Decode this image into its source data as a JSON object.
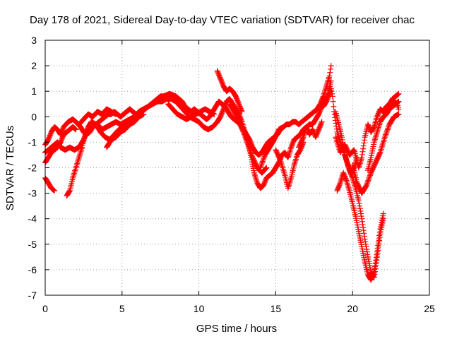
{
  "chart_data": {
    "type": "scatter",
    "title": "Day 178 of 2021, Sidereal Day-to-day VTEC variation (SDTVAR) for receiver chac",
    "xlabel": "GPS time / hours",
    "ylabel": "SDTVAR / TECUs",
    "xlim": [
      0,
      25
    ],
    "ylim": [
      -7,
      3
    ],
    "xticks": [
      0,
      5,
      10,
      15,
      20,
      25
    ],
    "yticks": [
      -7,
      -6,
      -5,
      -4,
      -3,
      -2,
      -1,
      0,
      1,
      2,
      3
    ],
    "grid": true,
    "legend": "none",
    "marker": "plus",
    "series_color": "#ff0000",
    "tracks": [
      [
        [
          0.0,
          -1.1
        ],
        [
          0.2,
          -0.9
        ],
        [
          0.4,
          -0.6
        ],
        [
          0.6,
          -0.4
        ],
        [
          0.8,
          -0.5
        ],
        [
          1.0,
          -0.7
        ],
        [
          1.2,
          -0.4
        ],
        [
          1.5,
          -0.2
        ],
        [
          1.8,
          -0.1
        ],
        [
          2.0,
          -0.2
        ],
        [
          2.3,
          -0.4
        ],
        [
          2.5,
          -0.6
        ],
        [
          2.7,
          -0.7
        ],
        [
          2.9,
          -0.6
        ],
        [
          3.1,
          -0.4
        ],
        [
          3.3,
          -0.3
        ],
        [
          3.5,
          -0.2
        ],
        [
          3.7,
          -0.1
        ],
        [
          3.9,
          0.0
        ],
        [
          4.1,
          0.1
        ],
        [
          4.3,
          0.1
        ],
        [
          4.5,
          0.2
        ],
        [
          4.7,
          0.1
        ],
        [
          4.9,
          0.0
        ],
        [
          5.1,
          0.1
        ],
        [
          5.3,
          0.2
        ],
        [
          5.5,
          0.3
        ],
        [
          5.7,
          0.2
        ],
        [
          5.9,
          0.1
        ],
        [
          6.1,
          0.1
        ],
        [
          6.3,
          0.2
        ],
        [
          6.5,
          0.3
        ],
        [
          6.7,
          0.4
        ],
        [
          6.9,
          0.5
        ],
        [
          7.1,
          0.6
        ],
        [
          7.3,
          0.7
        ],
        [
          7.5,
          0.8
        ],
        [
          7.7,
          0.8
        ],
        [
          7.9,
          0.85
        ],
        [
          8.1,
          0.9
        ],
        [
          8.3,
          0.85
        ],
        [
          8.5,
          0.8
        ],
        [
          8.7,
          0.7
        ],
        [
          8.9,
          0.6
        ],
        [
          9.1,
          0.4
        ],
        [
          9.3,
          0.3
        ],
        [
          9.5,
          0.2
        ],
        [
          9.7,
          0.3
        ],
        [
          9.9,
          0.2
        ],
        [
          10.1,
          0.1
        ],
        [
          10.3,
          0.0
        ],
        [
          10.5,
          -0.1
        ],
        [
          10.7,
          0.0
        ],
        [
          10.9,
          0.2
        ],
        [
          11.1,
          0.4
        ],
        [
          11.3,
          0.6
        ],
        [
          11.5,
          0.5
        ],
        [
          11.7,
          0.4
        ],
        [
          11.9,
          0.2
        ],
        [
          12.1,
          0.0
        ],
        [
          12.3,
          -0.1
        ],
        [
          12.5,
          -0.2
        ],
        [
          12.7,
          -0.3
        ],
        [
          12.9,
          -0.5
        ],
        [
          13.1,
          -0.7
        ],
        [
          13.3,
          -0.9
        ],
        [
          13.5,
          -1.2
        ],
        [
          13.7,
          -1.4
        ],
        [
          13.9,
          -1.5
        ],
        [
          14.1,
          -1.4
        ],
        [
          14.3,
          -1.2
        ],
        [
          14.5,
          -1.0
        ],
        [
          14.7,
          -0.9
        ],
        [
          14.9,
          -0.8
        ],
        [
          15.1,
          -0.7
        ],
        [
          15.3,
          -0.5
        ],
        [
          15.5,
          -0.4
        ],
        [
          15.7,
          -0.3
        ],
        [
          15.9,
          -0.3
        ],
        [
          16.1,
          -0.2
        ],
        [
          16.3,
          -0.2
        ],
        [
          16.5,
          -0.3
        ],
        [
          16.7,
          -0.2
        ],
        [
          16.9,
          -0.1
        ],
        [
          17.1,
          0.0
        ],
        [
          17.3,
          0.1
        ],
        [
          17.5,
          0.2
        ],
        [
          17.7,
          0.3
        ],
        [
          17.9,
          0.5
        ],
        [
          18.1,
          0.8
        ],
        [
          18.3,
          1.2
        ],
        [
          18.5,
          1.6
        ],
        [
          18.6,
          2.0
        ]
      ],
      [
        [
          0.0,
          -1.4
        ],
        [
          0.2,
          -1.3
        ],
        [
          0.4,
          -1.2
        ],
        [
          0.6,
          -1.1
        ],
        [
          0.8,
          -1.0
        ],
        [
          1.0,
          -1.2
        ],
        [
          1.3,
          -1.3
        ],
        [
          1.6,
          -1.2
        ],
        [
          1.9,
          -1.3
        ],
        [
          2.2,
          -1.2
        ],
        [
          2.5,
          -0.9
        ],
        [
          2.8,
          -0.5
        ],
        [
          3.1,
          -0.3
        ],
        [
          3.4,
          -0.3
        ],
        [
          3.7,
          -0.5
        ],
        [
          4.0,
          -0.4
        ],
        [
          4.3,
          -0.3
        ],
        [
          4.6,
          -0.2
        ],
        [
          4.9,
          -0.3
        ],
        [
          5.2,
          -0.2
        ],
        [
          5.5,
          -0.1
        ],
        [
          5.8,
          0.0
        ],
        [
          6.1,
          0.2
        ],
        [
          6.4,
          0.3
        ],
        [
          6.7,
          0.4
        ],
        [
          7.0,
          0.5
        ],
        [
          7.3,
          0.6
        ],
        [
          7.6,
          0.6
        ],
        [
          7.9,
          0.7
        ],
        [
          8.2,
          0.7
        ],
        [
          8.5,
          0.6
        ],
        [
          8.8,
          0.4
        ],
        [
          9.1,
          0.2
        ],
        [
          9.4,
          0.0
        ],
        [
          9.7,
          -0.1
        ],
        [
          10.0,
          -0.2
        ],
        [
          10.3,
          -0.4
        ],
        [
          10.6,
          -0.5
        ],
        [
          10.9,
          -0.4
        ],
        [
          11.2,
          -0.2
        ],
        [
          11.4,
          0.0
        ],
        [
          11.6,
          0.3
        ],
        [
          11.8,
          0.6
        ],
        [
          12.0,
          0.7
        ],
        [
          12.2,
          0.5
        ],
        [
          12.4,
          0.3
        ],
        [
          12.6,
          0.1
        ],
        [
          12.8,
          -0.2
        ],
        [
          13.0,
          -0.6
        ],
        [
          13.2,
          -1.0
        ],
        [
          13.4,
          -1.6
        ],
        [
          13.6,
          -2.2
        ],
        [
          13.8,
          -2.6
        ],
        [
          14.0,
          -2.8
        ],
        [
          14.2,
          -2.7
        ],
        [
          14.4,
          -2.4
        ],
        [
          14.6,
          -2.3
        ],
        [
          14.8,
          -2.2
        ],
        [
          15.0,
          -2.0
        ],
        [
          15.2,
          -1.8
        ],
        [
          15.4,
          -1.5
        ],
        [
          15.6,
          -1.4
        ],
        [
          15.8,
          -1.6
        ],
        [
          16.0,
          -1.2
        ],
        [
          16.2,
          -0.9
        ],
        [
          16.4,
          -0.8
        ],
        [
          16.6,
          -0.7
        ],
        [
          16.8,
          -0.5
        ],
        [
          17.0,
          -0.4
        ],
        [
          17.2,
          -0.3
        ],
        [
          17.4,
          -0.3
        ],
        [
          17.6,
          -0.1
        ],
        [
          17.8,
          0.1
        ],
        [
          18.0,
          0.4
        ],
        [
          18.2,
          0.6
        ],
        [
          18.4,
          0.9
        ],
        [
          18.6,
          1.4
        ]
      ],
      [
        [
          0.0,
          -1.8
        ],
        [
          0.2,
          -1.6
        ],
        [
          0.4,
          -1.4
        ],
        [
          0.6,
          -1.3
        ],
        [
          0.8,
          -1.2
        ],
        [
          1.0,
          -1.0
        ],
        [
          1.2,
          -0.7
        ],
        [
          1.4,
          -0.6
        ],
        [
          1.6,
          -0.5
        ],
        [
          1.8,
          -0.4
        ],
        [
          2.0,
          -0.5
        ]
      ],
      [
        [
          0.0,
          -2.4
        ],
        [
          0.2,
          -2.6
        ],
        [
          0.4,
          -2.8
        ],
        [
          0.6,
          -2.9
        ]
      ],
      [
        [
          1.4,
          -3.1
        ],
        [
          1.6,
          -2.9
        ],
        [
          1.8,
          -2.4
        ],
        [
          2.0,
          -2.0
        ],
        [
          2.2,
          -1.6
        ],
        [
          2.4,
          -1.2
        ],
        [
          2.6,
          -0.7
        ],
        [
          2.8,
          -0.4
        ],
        [
          3.0,
          -0.2
        ],
        [
          3.3,
          -0.3
        ],
        [
          3.6,
          -0.6
        ],
        [
          3.9,
          -0.8
        ],
        [
          4.2,
          -0.9
        ],
        [
          4.5,
          -0.7
        ],
        [
          4.8,
          -0.5
        ],
        [
          5.1,
          -0.4
        ],
        [
          5.4,
          -0.3
        ],
        [
          5.7,
          -0.2
        ]
      ],
      [
        [
          18.8,
          0.2
        ],
        [
          19.0,
          -0.6
        ],
        [
          19.2,
          -1.0
        ],
        [
          19.4,
          -1.3
        ],
        [
          19.6,
          -1.7
        ],
        [
          19.8,
          -2.1
        ],
        [
          20.0,
          -2.4
        ],
        [
          20.2,
          -2.8
        ],
        [
          20.4,
          -3.3
        ],
        [
          20.6,
          -4.0
        ],
        [
          20.8,
          -4.8
        ],
        [
          21.0,
          -5.5
        ],
        [
          21.2,
          -6.1
        ],
        [
          21.4,
          -6.3
        ],
        [
          21.6,
          -5.5
        ],
        [
          21.8,
          -4.6
        ],
        [
          22.0,
          -4.0
        ]
      ],
      [
        [
          19.0,
          -2.9
        ],
        [
          19.2,
          -2.6
        ],
        [
          19.4,
          -2.2
        ],
        [
          19.6,
          -2.5
        ],
        [
          19.8,
          -2.9
        ],
        [
          20.0,
          -3.4
        ],
        [
          20.2,
          -3.9
        ],
        [
          20.4,
          -4.5
        ],
        [
          20.6,
          -5.1
        ],
        [
          20.8,
          -5.7
        ],
        [
          21.0,
          -6.2
        ],
        [
          21.2,
          -6.4
        ],
        [
          21.4,
          -6.1
        ],
        [
          21.6,
          -5.3
        ],
        [
          21.8,
          -4.4
        ],
        [
          22.0,
          -3.8
        ]
      ],
      [
        [
          18.9,
          -0.8
        ],
        [
          19.2,
          -1.4
        ],
        [
          19.5,
          -1.1
        ],
        [
          19.8,
          -1.5
        ],
        [
          20.1,
          -1.3
        ],
        [
          20.4,
          -2.0
        ],
        [
          20.6,
          -1.6
        ],
        [
          20.8,
          -0.8
        ],
        [
          21.0,
          -0.3
        ],
        [
          21.2,
          -0.6
        ],
        [
          21.4,
          -0.4
        ],
        [
          21.6,
          0.0
        ],
        [
          21.8,
          0.3
        ],
        [
          22.0,
          0.2
        ],
        [
          22.2,
          0.4
        ],
        [
          22.4,
          0.5
        ],
        [
          22.6,
          0.7
        ],
        [
          22.8,
          0.8
        ],
        [
          23.0,
          0.9
        ]
      ],
      [
        [
          21.0,
          -2.1
        ],
        [
          21.2,
          -1.6
        ],
        [
          21.4,
          -1.0
        ],
        [
          21.6,
          -0.6
        ],
        [
          21.8,
          -0.2
        ],
        [
          22.0,
          0.0
        ],
        [
          22.2,
          0.1
        ],
        [
          22.4,
          0.3
        ],
        [
          22.6,
          0.4
        ],
        [
          22.8,
          0.5
        ],
        [
          23.0,
          0.6
        ]
      ],
      [
        [
          20.0,
          -1.9
        ],
        [
          20.3,
          -2.6
        ],
        [
          20.6,
          -3.0
        ],
        [
          20.9,
          -2.7
        ],
        [
          21.2,
          -2.2
        ],
        [
          21.5,
          -1.8
        ],
        [
          21.8,
          -1.4
        ],
        [
          22.1,
          -0.8
        ],
        [
          22.4,
          -0.3
        ],
        [
          22.7,
          0.0
        ],
        [
          23.0,
          0.1
        ]
      ],
      [
        [
          15.0,
          -1.3
        ],
        [
          15.3,
          -1.7
        ],
        [
          15.6,
          -2.3
        ],
        [
          15.8,
          -2.8
        ],
        [
          16.0,
          -2.4
        ],
        [
          16.2,
          -1.9
        ],
        [
          16.4,
          -1.5
        ],
        [
          16.6,
          -1.3
        ],
        [
          16.8,
          -1.0
        ]
      ],
      [
        [
          14.0,
          -2.0
        ],
        [
          14.3,
          -1.5
        ],
        [
          14.6,
          -1.2
        ],
        [
          14.9,
          -0.9
        ],
        [
          15.2,
          -0.5
        ],
        [
          15.5,
          -0.4
        ]
      ],
      [
        [
          4.0,
          -1.2
        ],
        [
          4.3,
          -0.9
        ],
        [
          4.6,
          -0.8
        ],
        [
          4.9,
          -0.6
        ],
        [
          5.2,
          -0.5
        ],
        [
          5.5,
          -0.3
        ],
        [
          5.8,
          -0.2
        ],
        [
          6.1,
          0.0
        ],
        [
          6.4,
          0.1
        ]
      ],
      [
        [
          2.2,
          -0.3
        ],
        [
          2.5,
          -0.1
        ],
        [
          2.8,
          0.1
        ],
        [
          3.1,
          0.0
        ],
        [
          3.4,
          0.2
        ],
        [
          3.7,
          0.1
        ],
        [
          4.0,
          0.3
        ],
        [
          4.3,
          0.2
        ],
        [
          4.6,
          0.1
        ]
      ],
      [
        [
          8.0,
          0.5
        ],
        [
          8.3,
          0.3
        ],
        [
          8.6,
          0.1
        ],
        [
          8.9,
          0.0
        ],
        [
          9.2,
          -0.1
        ],
        [
          9.5,
          0.0
        ],
        [
          9.8,
          0.1
        ],
        [
          10.1,
          0.2
        ],
        [
          10.4,
          0.3
        ],
        [
          10.7,
          0.2
        ],
        [
          11.0,
          0.1
        ]
      ],
      [
        [
          11.2,
          1.8
        ],
        [
          11.4,
          1.5
        ],
        [
          11.6,
          1.2
        ],
        [
          11.8,
          1.0
        ],
        [
          12.0,
          1.1
        ],
        [
          12.2,
          1.0
        ],
        [
          12.4,
          0.8
        ],
        [
          12.6,
          0.5
        ],
        [
          12.8,
          0.2
        ]
      ],
      [
        [
          12.0,
          0.5
        ],
        [
          12.3,
          0.2
        ],
        [
          12.6,
          -0.2
        ],
        [
          12.9,
          -0.6
        ],
        [
          13.2,
          -1.1
        ],
        [
          13.5,
          -1.6
        ],
        [
          13.8,
          -2.0
        ],
        [
          14.1,
          -2.2
        ],
        [
          14.4,
          -2.0
        ]
      ],
      [
        [
          16.5,
          -1.2
        ],
        [
          16.8,
          -0.8
        ],
        [
          17.0,
          -0.4
        ],
        [
          17.2,
          -0.7
        ],
        [
          17.4,
          -0.5
        ],
        [
          17.6,
          -0.8
        ],
        [
          17.8,
          -0.5
        ],
        [
          18.0,
          -0.2
        ]
      ],
      [
        [
          18.1,
          0.4
        ],
        [
          18.3,
          0.6
        ],
        [
          18.5,
          0.9
        ],
        [
          18.6,
          1.1
        ],
        [
          18.7,
          0.8
        ],
        [
          18.8,
          0.2
        ]
      ],
      [
        [
          18.9,
          0.2
        ],
        [
          19.1,
          -0.3
        ],
        [
          19.3,
          -0.8
        ],
        [
          19.5,
          -1.5
        ],
        [
          19.7,
          -1.9
        ],
        [
          19.9,
          -2.2
        ],
        [
          20.1,
          -2.0
        ],
        [
          20.3,
          -1.6
        ]
      ],
      [
        [
          22.5,
          0.4
        ],
        [
          22.7,
          0.6
        ],
        [
          22.9,
          0.5
        ],
        [
          23.0,
          0.3
        ]
      ]
    ]
  }
}
